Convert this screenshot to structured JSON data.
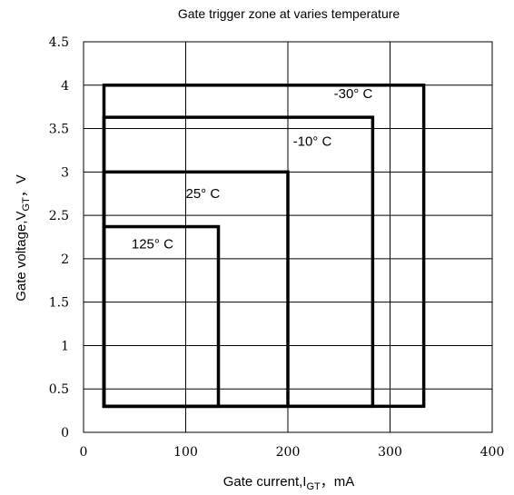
{
  "chart_data": {
    "type": "rectangles",
    "title": "Gate trigger zone at varies temperature",
    "xlabel": {
      "text": "Gate current,I",
      "sub": "GT",
      "unit": "，mA"
    },
    "ylabel": {
      "text": "Gate voltage,V",
      "sub": "GT",
      "unit": "，V"
    },
    "xlim": [
      0,
      400
    ],
    "ylim": [
      0,
      4.5
    ],
    "xticks": [
      0,
      100,
      200,
      300,
      400
    ],
    "xtick_labels": [
      "0",
      "100",
      "200",
      "300",
      "400"
    ],
    "yticks": [
      0,
      0.5,
      1,
      1.5,
      2,
      2.5,
      3,
      3.5,
      4,
      4.5
    ],
    "ytick_labels": [
      "0",
      "0.5",
      "1",
      "1.5",
      "2",
      "2.5",
      "3",
      "3.5",
      "4",
      "4.5"
    ],
    "grid": true,
    "zones": [
      {
        "label": "-30° C",
        "x": [
          20,
          333
        ],
        "y": [
          0.3,
          4.0
        ],
        "label_at": [
          245,
          3.85
        ]
      },
      {
        "label": "-10° C",
        "x": [
          20,
          283
        ],
        "y": [
          0.3,
          3.63
        ],
        "label_at": [
          205,
          3.3
        ]
      },
      {
        "label": "25° C",
        "x": [
          20,
          200
        ],
        "y": [
          0.3,
          3.0
        ],
        "label_at": [
          100,
          2.7
        ]
      },
      {
        "label": "125° C",
        "x": [
          20,
          132
        ],
        "y": [
          0.3,
          2.37
        ],
        "label_at": [
          47,
          2.12
        ]
      }
    ]
  }
}
